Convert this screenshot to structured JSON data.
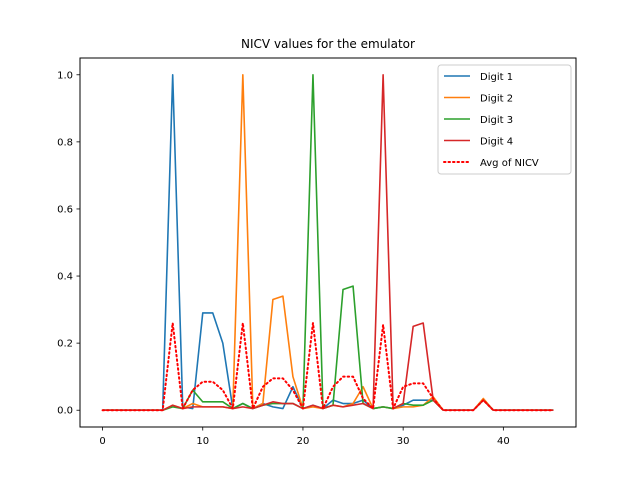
{
  "chart_data": {
    "type": "line",
    "title": "NICV values for the emulator",
    "xlabel": "",
    "ylabel": "",
    "xlim": [
      -2.25,
      47.25
    ],
    "ylim": [
      -0.05,
      1.05
    ],
    "xticks": [
      0,
      10,
      20,
      30,
      40
    ],
    "yticks": [
      0.0,
      0.2,
      0.4,
      0.6,
      0.8,
      1.0
    ],
    "xtick_labels": [
      "0",
      "10",
      "20",
      "30",
      "40"
    ],
    "ytick_labels": [
      "0.0",
      "0.2",
      "0.4",
      "0.6",
      "0.8",
      "1.0"
    ],
    "grid": false,
    "legend_position": "top-right",
    "x": [
      0,
      1,
      2,
      3,
      4,
      5,
      6,
      7,
      8,
      9,
      10,
      11,
      12,
      13,
      14,
      15,
      16,
      17,
      18,
      19,
      20,
      21,
      22,
      23,
      24,
      25,
      26,
      27,
      28,
      29,
      30,
      31,
      32,
      33,
      34,
      35,
      36,
      37,
      38,
      39,
      40,
      41,
      42,
      43,
      44,
      45
    ],
    "series": [
      {
        "name": "Digit 1",
        "color": "#1f77b4",
        "style": "solid",
        "values": [
          0,
          0,
          0,
          0,
          0,
          0,
          0,
          1.0,
          0.01,
          0.005,
          0.29,
          0.29,
          0.2,
          0.005,
          0.02,
          0.005,
          0.02,
          0.01,
          0.005,
          0.07,
          0.005,
          0.015,
          0.005,
          0.03,
          0.02,
          0.02,
          0.03,
          0.005,
          0.01,
          0.005,
          0.015,
          0.03,
          0.03,
          0.03,
          0.0,
          0,
          0,
          0,
          0.03,
          0,
          0,
          0,
          0,
          0,
          0,
          0
        ]
      },
      {
        "name": "Digit 2",
        "color": "#ff7f0e",
        "style": "solid",
        "values": [
          0,
          0,
          0,
          0,
          0,
          0,
          0,
          0.015,
          0.005,
          0.02,
          0.01,
          0.01,
          0.01,
          0.005,
          1.0,
          0.005,
          0.02,
          0.33,
          0.34,
          0.1,
          0.005,
          0.01,
          0.005,
          0.015,
          0.01,
          0.02,
          0.07,
          0.005,
          0.01,
          0.005,
          0.01,
          0.01,
          0.015,
          0.04,
          0.0,
          0,
          0,
          0,
          0.035,
          0,
          0,
          0,
          0,
          0,
          0,
          0
        ]
      },
      {
        "name": "Digit 3",
        "color": "#2ca02c",
        "style": "solid",
        "values": [
          0,
          0,
          0,
          0,
          0,
          0,
          0,
          0.01,
          0.005,
          0.06,
          0.025,
          0.025,
          0.025,
          0.005,
          0.02,
          0.005,
          0.015,
          0.02,
          0.02,
          0.02,
          0.005,
          1.0,
          0.005,
          0.015,
          0.36,
          0.37,
          0.02,
          0.005,
          0.01,
          0.005,
          0.02,
          0.015,
          0.015,
          0.03,
          0.0,
          0,
          0,
          0,
          0.03,
          0,
          0,
          0,
          0,
          0,
          0,
          0
        ]
      },
      {
        "name": "Digit 4",
        "color": "#d62728",
        "style": "solid",
        "values": [
          0,
          0,
          0,
          0,
          0,
          0,
          0,
          0.015,
          0.005,
          0.01,
          0.01,
          0.01,
          0.01,
          0.005,
          0.01,
          0.005,
          0.015,
          0.025,
          0.02,
          0.02,
          0.005,
          0.015,
          0.005,
          0.015,
          0.01,
          0.015,
          0.02,
          0.005,
          1.0,
          0.005,
          0.02,
          0.25,
          0.26,
          0.03,
          0.0,
          0,
          0,
          0,
          0.03,
          0,
          0,
          0,
          0,
          0,
          0,
          0
        ]
      },
      {
        "name": "Avg of NICV",
        "color": "#ff0000",
        "style": "dotted",
        "values": [
          0,
          0,
          0,
          0,
          0,
          0,
          0,
          0.26,
          0.005,
          0.06,
          0.085,
          0.085,
          0.06,
          0.005,
          0.26,
          0.005,
          0.07,
          0.095,
          0.095,
          0.06,
          0.005,
          0.26,
          0.005,
          0.07,
          0.1,
          0.1,
          0.035,
          0.005,
          0.255,
          0.005,
          0.07,
          0.08,
          0.08,
          0.035,
          0.0,
          0,
          0,
          0,
          0.03,
          0,
          0,
          0,
          0,
          0,
          0,
          0
        ]
      }
    ]
  }
}
